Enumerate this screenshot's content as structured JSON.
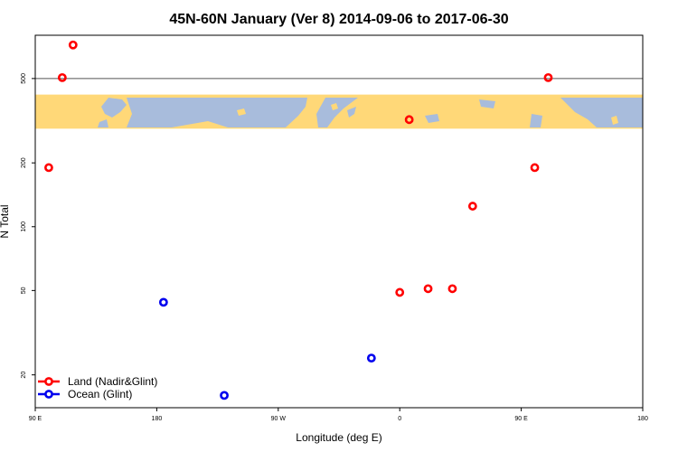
{
  "chart_data": {
    "type": "scatter",
    "title": "45N-60N January (Ver 8)   2014-09-06 to 2017-06-30",
    "xlabel": "Longitude (deg E)",
    "ylabel": "N Total",
    "xlim": [
      90,
      540
    ],
    "ylim_log": [
      14,
      800
    ],
    "y_scale": "log",
    "grid": false,
    "x_ticks": [
      {
        "value": 90,
        "label": "90 E"
      },
      {
        "value": 180,
        "label": "180"
      },
      {
        "value": 270,
        "label": "90 W"
      },
      {
        "value": 360,
        "label": "0"
      },
      {
        "value": 450,
        "label": "90 E"
      },
      {
        "value": 540,
        "label": "180"
      }
    ],
    "y_ticks": [
      {
        "value": 20,
        "label": "20"
      },
      {
        "value": 50,
        "label": "50"
      },
      {
        "value": 100,
        "label": "100"
      },
      {
        "value": 200,
        "label": "200"
      },
      {
        "value": 500,
        "label": "500"
      }
    ],
    "reference_line_y": 500,
    "series": [
      {
        "name": "Land (Nadir&Glint)",
        "color": "#ff0000",
        "points": [
          {
            "x": 100,
            "y": 190
          },
          {
            "x": 110,
            "y": 505
          },
          {
            "x": 118,
            "y": 720
          },
          {
            "x": 367,
            "y": 320
          },
          {
            "x": 360,
            "y": 49
          },
          {
            "x": 381,
            "y": 51
          },
          {
            "x": 399,
            "y": 51
          },
          {
            "x": 414,
            "y": 125
          },
          {
            "x": 460,
            "y": 190
          },
          {
            "x": 470,
            "y": 505
          }
        ]
      },
      {
        "name": "Ocean (Glint)",
        "color": "#0000ee",
        "points": [
          {
            "x": 185,
            "y": 44
          },
          {
            "x": 230,
            "y": 16
          },
          {
            "x": 339,
            "y": 24
          }
        ]
      }
    ],
    "legend_position": "bottom-left",
    "map_strip": {
      "y_top": 420,
      "y_bottom": 290,
      "land_color": "#ffd878",
      "ocean_color": "#a8bcdc"
    }
  }
}
